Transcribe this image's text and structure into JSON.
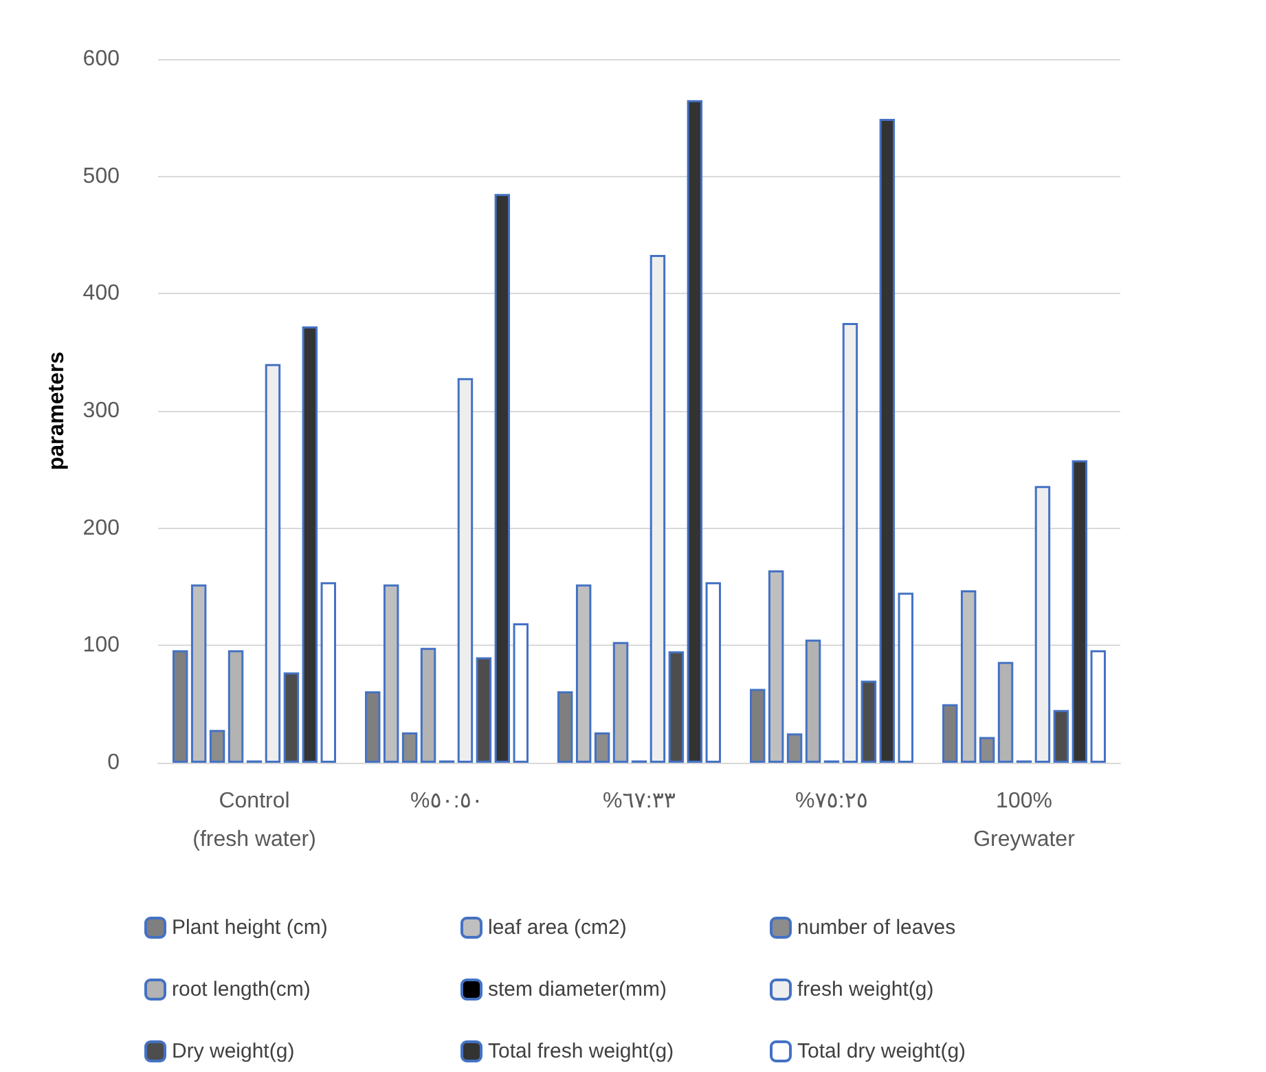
{
  "chart_data": {
    "type": "bar",
    "ylabel": "parameters",
    "categories": [
      "Control\n(fresh water)",
      "%٥٠:٥٠",
      "%٦٧:٣٣",
      "%٧٥:٢٥",
      "100%\nGreywater"
    ],
    "series": [
      {
        "name": "Plant height (cm)",
        "color": "#7f7f7f",
        "values": [
          96,
          61,
          61,
          63,
          50
        ]
      },
      {
        "name": "leaf area (cm2)",
        "color": "#bfbfbf",
        "values": [
          152,
          152,
          152,
          164,
          147
        ]
      },
      {
        "name": "number of leaves",
        "color": "#8c8c8c",
        "values": [
          28,
          26,
          26,
          25,
          22
        ]
      },
      {
        "name": "root length(cm)",
        "color": "#b3b3b3",
        "values": [
          96,
          98,
          103,
          105,
          86
        ]
      },
      {
        "name": "stem diameter(mm)",
        "color": "#000000",
        "values": [
          2,
          2,
          2,
          2,
          2
        ]
      },
      {
        "name": "fresh weight(g)",
        "color": "#eeeeee",
        "values": [
          340,
          328,
          433,
          375,
          236
        ]
      },
      {
        "name": "Dry weight(g)",
        "color": "#4d4d4d",
        "values": [
          77,
          90,
          95,
          70,
          45
        ]
      },
      {
        "name": "Total fresh weight(g)",
        "color": "#333333",
        "values": [
          372,
          485,
          565,
          549,
          258
        ]
      },
      {
        "name": "Total dry weight(g)",
        "color": "#ffffff",
        "values": [
          154,
          119,
          154,
          145,
          96
        ]
      }
    ],
    "ylim": [
      0,
      600
    ],
    "yticks": [
      0,
      100,
      200,
      300,
      400,
      500,
      600
    ],
    "grid": "y",
    "legend": "bottom"
  }
}
